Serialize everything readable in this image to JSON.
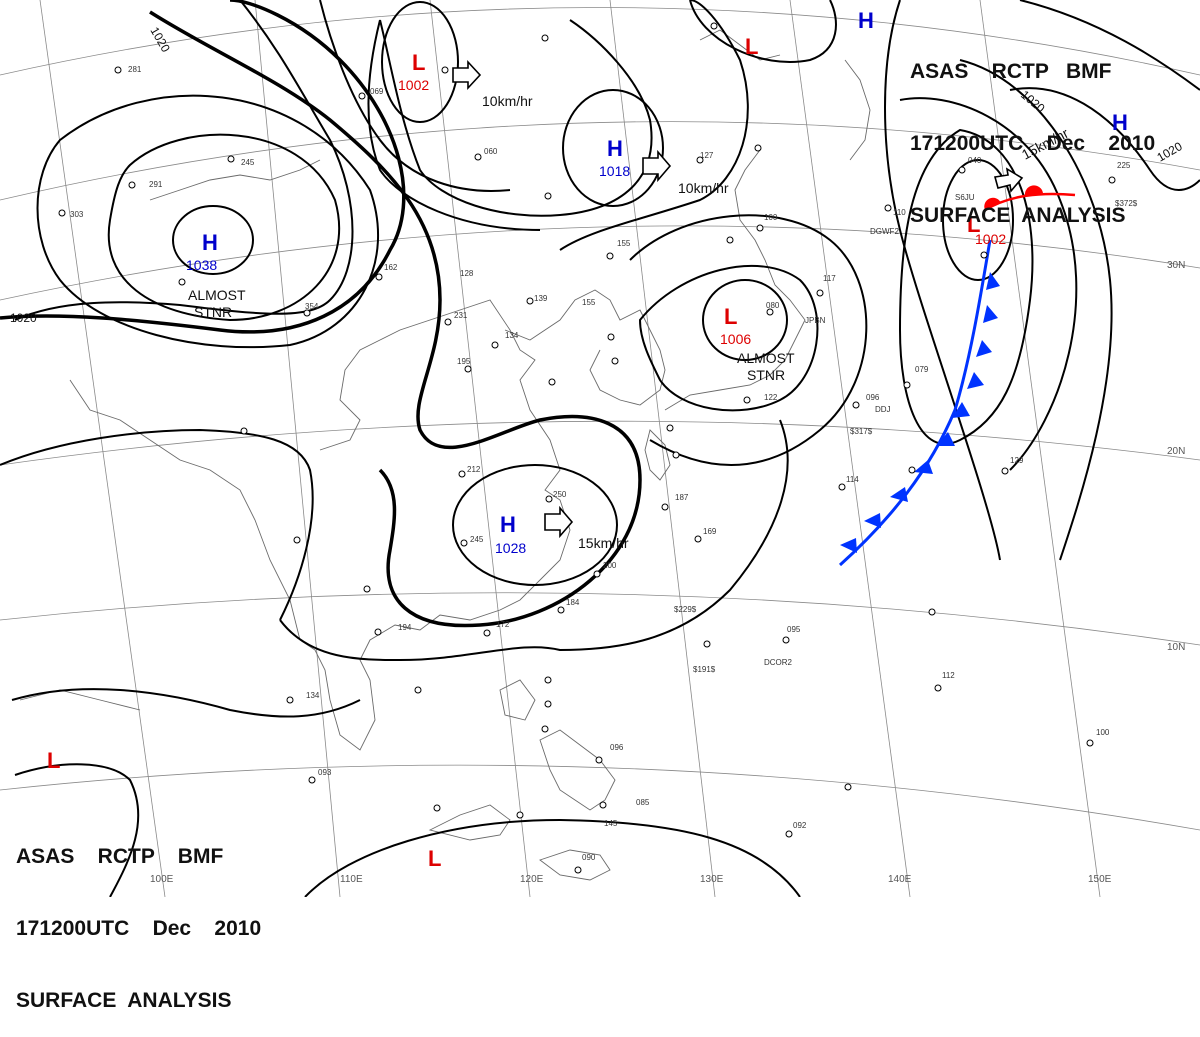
{
  "header": {
    "line1": "ASAS    RCTP   BMF",
    "line2": "171200UTC    Dec    2010",
    "line3": "SURFACE  ANALYSIS"
  },
  "footer": {
    "line1": "ASAS    RCTP    BMF",
    "line2": "171200UTC    Dec    2010",
    "line3": "SURFACE  ANALYSIS"
  },
  "colors": {
    "high": "#0000cc",
    "low": "#dd0000",
    "isobar": "#000000",
    "coast": "#666666",
    "grid": "#888888",
    "front_cold": "#0033ff",
    "front_warm": "#ff0000"
  },
  "pressure_centers": [
    {
      "id": "high-mongolia",
      "type": "H",
      "value": "1038"
    },
    {
      "id": "high-south-china",
      "type": "H",
      "value": "1028"
    },
    {
      "id": "high-north-china",
      "type": "H",
      "value": "1018"
    },
    {
      "id": "low-north",
      "type": "L",
      "value": "1002"
    },
    {
      "id": "low-japan-sea",
      "type": "L",
      "value": "1006"
    },
    {
      "id": "low-pacific",
      "type": "L",
      "value": "1002"
    },
    {
      "id": "high-top",
      "type": "H",
      "value": ""
    },
    {
      "id": "high-right",
      "type": "H",
      "value": ""
    },
    {
      "id": "low-top",
      "type": "L",
      "value": ""
    },
    {
      "id": "low-bottom-left",
      "type": "L",
      "value": ""
    },
    {
      "id": "low-bottom",
      "type": "L",
      "value": ""
    }
  ],
  "motion_labels": {
    "north": "10km/hr",
    "central": "10km/hr",
    "south": "15km/hr",
    "pacific": "15km/hr"
  },
  "stationary_labels": {
    "mongolia_1": "ALMOST",
    "mongolia_2": "STNR",
    "japan_1": "ALMOST",
    "japan_2": "STNR"
  },
  "isobar_labels": {
    "nw": "1020",
    "west": "1020",
    "ne_1": "1020",
    "ne_2": "1020"
  },
  "longitude_labels": [
    "100E",
    "110E",
    "120E",
    "130E",
    "140E",
    "150E"
  ],
  "latitude_labels": [
    "30N",
    "20N",
    "10N"
  ],
  "ship_codes": {
    "a": "JPBN",
    "b": "DGWF2",
    "c": "DDJ",
    "d": "DCOR2",
    "e": "S6JU"
  },
  "station_values": {
    "s1": "$317$",
    "s2": "$229$",
    "s3": "$191$",
    "s4": "$372$",
    "s5": "069",
    "s6": "155",
    "s7": "127",
    "s8": "060",
    "s9": "128",
    "s10": "231",
    "s11": "134",
    "s12": "195",
    "s13": "212",
    "s14": "250",
    "s15": "245",
    "s16": "200",
    "s17": "184",
    "s18": "172",
    "s19": "194",
    "s20": "134",
    "s21": "093",
    "s22": "096",
    "s23": "085",
    "s24": "090",
    "s25": "112",
    "s26": "100",
    "s27": "092",
    "s28": "095",
    "s29": "129",
    "s30": "114",
    "s31": "079",
    "s32": "096",
    "s33": "117",
    "s34": "080",
    "s35": "040",
    "s36": "225",
    "s37": "187",
    "s38": "169",
    "s39": "139",
    "s40": "155",
    "s41": "291",
    "s42": "303",
    "s43": "281",
    "s44": "354",
    "s45": "162",
    "s46": "245",
    "s47": "145",
    "s48": "100",
    "s49": "110",
    "s50": "122"
  }
}
